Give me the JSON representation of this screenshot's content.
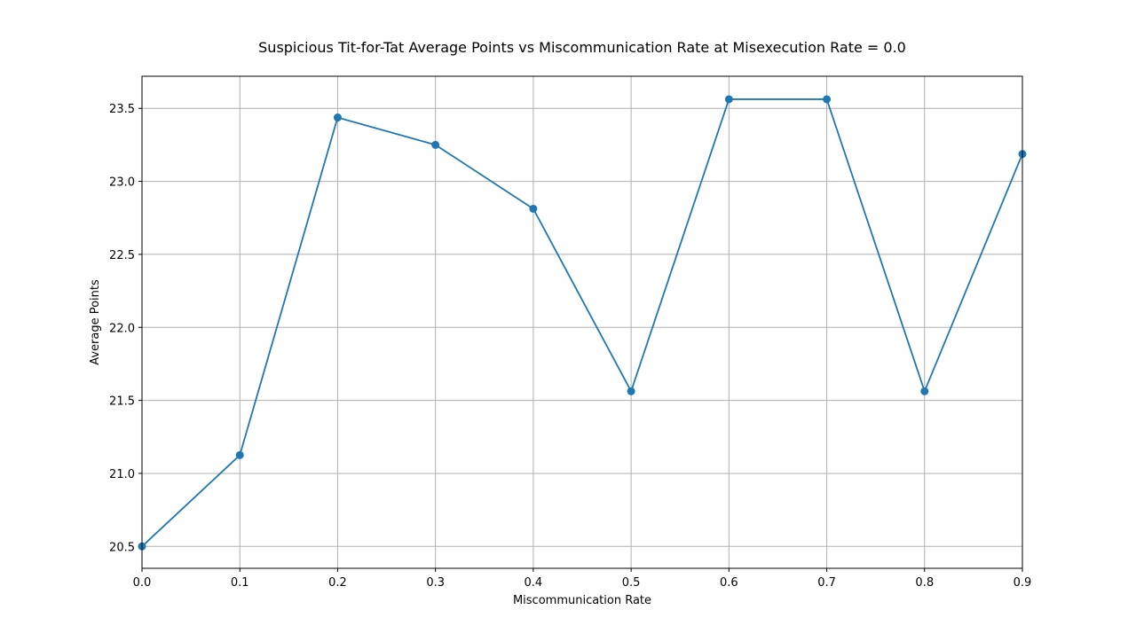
{
  "chart_data": {
    "type": "line",
    "title": "Suspicious Tit-for-Tat Average Points vs Miscommunication Rate at Misexecution Rate = 0.0",
    "xlabel": "Miscommunication Rate",
    "ylabel": "Average Points",
    "x": [
      0.0,
      0.1,
      0.2,
      0.3,
      0.4,
      0.5,
      0.6,
      0.7,
      0.8,
      0.9
    ],
    "series": [
      {
        "values": [
          20.5,
          21.125,
          23.4375,
          23.25,
          22.8125,
          21.5625,
          23.5625,
          23.5625,
          21.5625,
          23.1875
        ],
        "color": "#1f77b4",
        "marker": "circle"
      }
    ],
    "xlim": [
      0.0,
      0.9
    ],
    "ylim": [
      20.35,
      23.72
    ],
    "xticks": [
      0.0,
      0.1,
      0.2,
      0.3,
      0.4,
      0.5,
      0.6,
      0.7,
      0.8,
      0.9
    ],
    "xtick_labels": [
      "0.0",
      "0.1",
      "0.2",
      "0.3",
      "0.4",
      "0.5",
      "0.6",
      "0.7",
      "0.8",
      "0.9"
    ],
    "yticks": [
      20.5,
      21.0,
      21.5,
      22.0,
      22.5,
      23.0,
      23.5
    ],
    "ytick_labels": [
      "20.5",
      "21.0",
      "21.5",
      "22.0",
      "22.5",
      "23.0",
      "23.5"
    ],
    "grid": true,
    "grid_color": "#b0b0b0",
    "legend": "none"
  }
}
